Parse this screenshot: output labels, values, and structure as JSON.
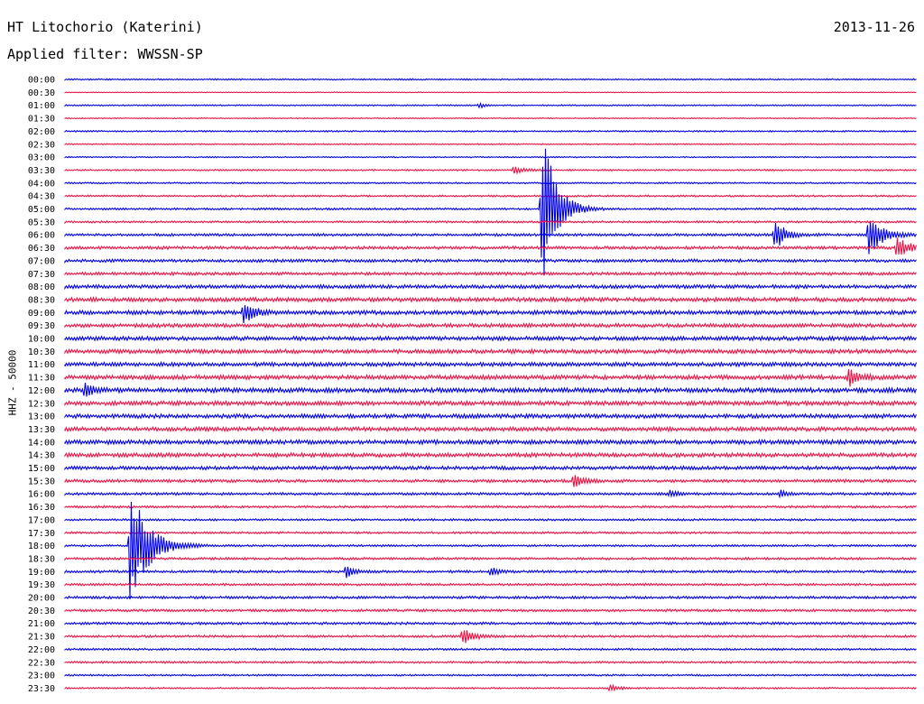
{
  "header": {
    "station": "HT Litochorio (Katerini)",
    "date": "2013-11-26",
    "filter": "Applied filter: WWSSN-SP"
  },
  "chart_data": {
    "type": "line",
    "title": "HT Litochorio (Katerini)",
    "subtitle": "Applied filter: WWSSN-SP",
    "ylabel": "HHZ - 50000",
    "xlabel": "",
    "grid": false,
    "colors": {
      "odd_row": "#0000ee",
      "even_row": "#ee1144"
    },
    "row_labels": [
      "00:00",
      "00:30",
      "01:00",
      "01:30",
      "02:00",
      "02:30",
      "03:00",
      "03:30",
      "04:00",
      "04:30",
      "05:00",
      "05:30",
      "06:00",
      "06:30",
      "07:00",
      "07:30",
      "08:00",
      "08:30",
      "09:00",
      "09:30",
      "10:00",
      "10:30",
      "11:00",
      "11:30",
      "12:00",
      "12:30",
      "13:00",
      "13:30",
      "14:00",
      "14:30",
      "15:00",
      "15:30",
      "16:00",
      "16:30",
      "17:00",
      "17:30",
      "18:00",
      "18:30",
      "19:00",
      "19:30",
      "20:00",
      "20:30",
      "21:00",
      "21:30",
      "22:00",
      "22:30",
      "23:00",
      "23:30"
    ],
    "row_noise": [
      0.6,
      0.3,
      0.5,
      0.4,
      0.6,
      0.5,
      0.5,
      0.6,
      0.6,
      0.7,
      0.8,
      0.8,
      1.0,
      1.2,
      1.2,
      1.2,
      1.4,
      1.6,
      1.6,
      1.5,
      1.6,
      1.6,
      1.6,
      1.7,
      1.8,
      1.7,
      1.6,
      1.6,
      1.7,
      1.6,
      1.4,
      1.2,
      1.0,
      0.9,
      0.8,
      0.8,
      0.8,
      0.9,
      1.0,
      0.9,
      1.0,
      1.0,
      1.0,
      0.9,
      0.8,
      0.8,
      0.7,
      0.6
    ],
    "events": [
      {
        "row": 2,
        "minute": 14.6,
        "amplitude": 4,
        "duration": 0.3
      },
      {
        "row": 7,
        "minute": 15.8,
        "amplitude": 4,
        "duration": 0.8
      },
      {
        "row": 10,
        "minute": 16.8,
        "amplitude": 95,
        "duration": 1.0
      },
      {
        "row": 12,
        "minute": 25.0,
        "amplitude": 18,
        "duration": 0.8
      },
      {
        "row": 12,
        "minute": 28.3,
        "amplitude": 25,
        "duration": 1.0
      },
      {
        "row": 13,
        "minute": 29.3,
        "amplitude": 12,
        "duration": 1.0
      },
      {
        "row": 18,
        "minute": 6.3,
        "amplitude": 14,
        "duration": 0.7
      },
      {
        "row": 23,
        "minute": 27.6,
        "amplitude": 10,
        "duration": 0.7
      },
      {
        "row": 24,
        "minute": 0.7,
        "amplitude": 9,
        "duration": 0.6
      },
      {
        "row": 31,
        "minute": 17.9,
        "amplitude": 7,
        "duration": 0.8
      },
      {
        "row": 32,
        "minute": 21.3,
        "amplitude": 4,
        "duration": 0.5
      },
      {
        "row": 32,
        "minute": 25.2,
        "amplitude": 4,
        "duration": 0.5
      },
      {
        "row": 36,
        "minute": 2.3,
        "amplitude": 70,
        "duration": 1.3
      },
      {
        "row": 38,
        "minute": 9.9,
        "amplitude": 7,
        "duration": 0.6
      },
      {
        "row": 38,
        "minute": 15.0,
        "amplitude": 5,
        "duration": 0.5
      },
      {
        "row": 43,
        "minute": 14.0,
        "amplitude": 9,
        "duration": 0.8
      },
      {
        "row": 47,
        "minute": 19.2,
        "amplitude": 4,
        "duration": 0.6
      }
    ]
  }
}
